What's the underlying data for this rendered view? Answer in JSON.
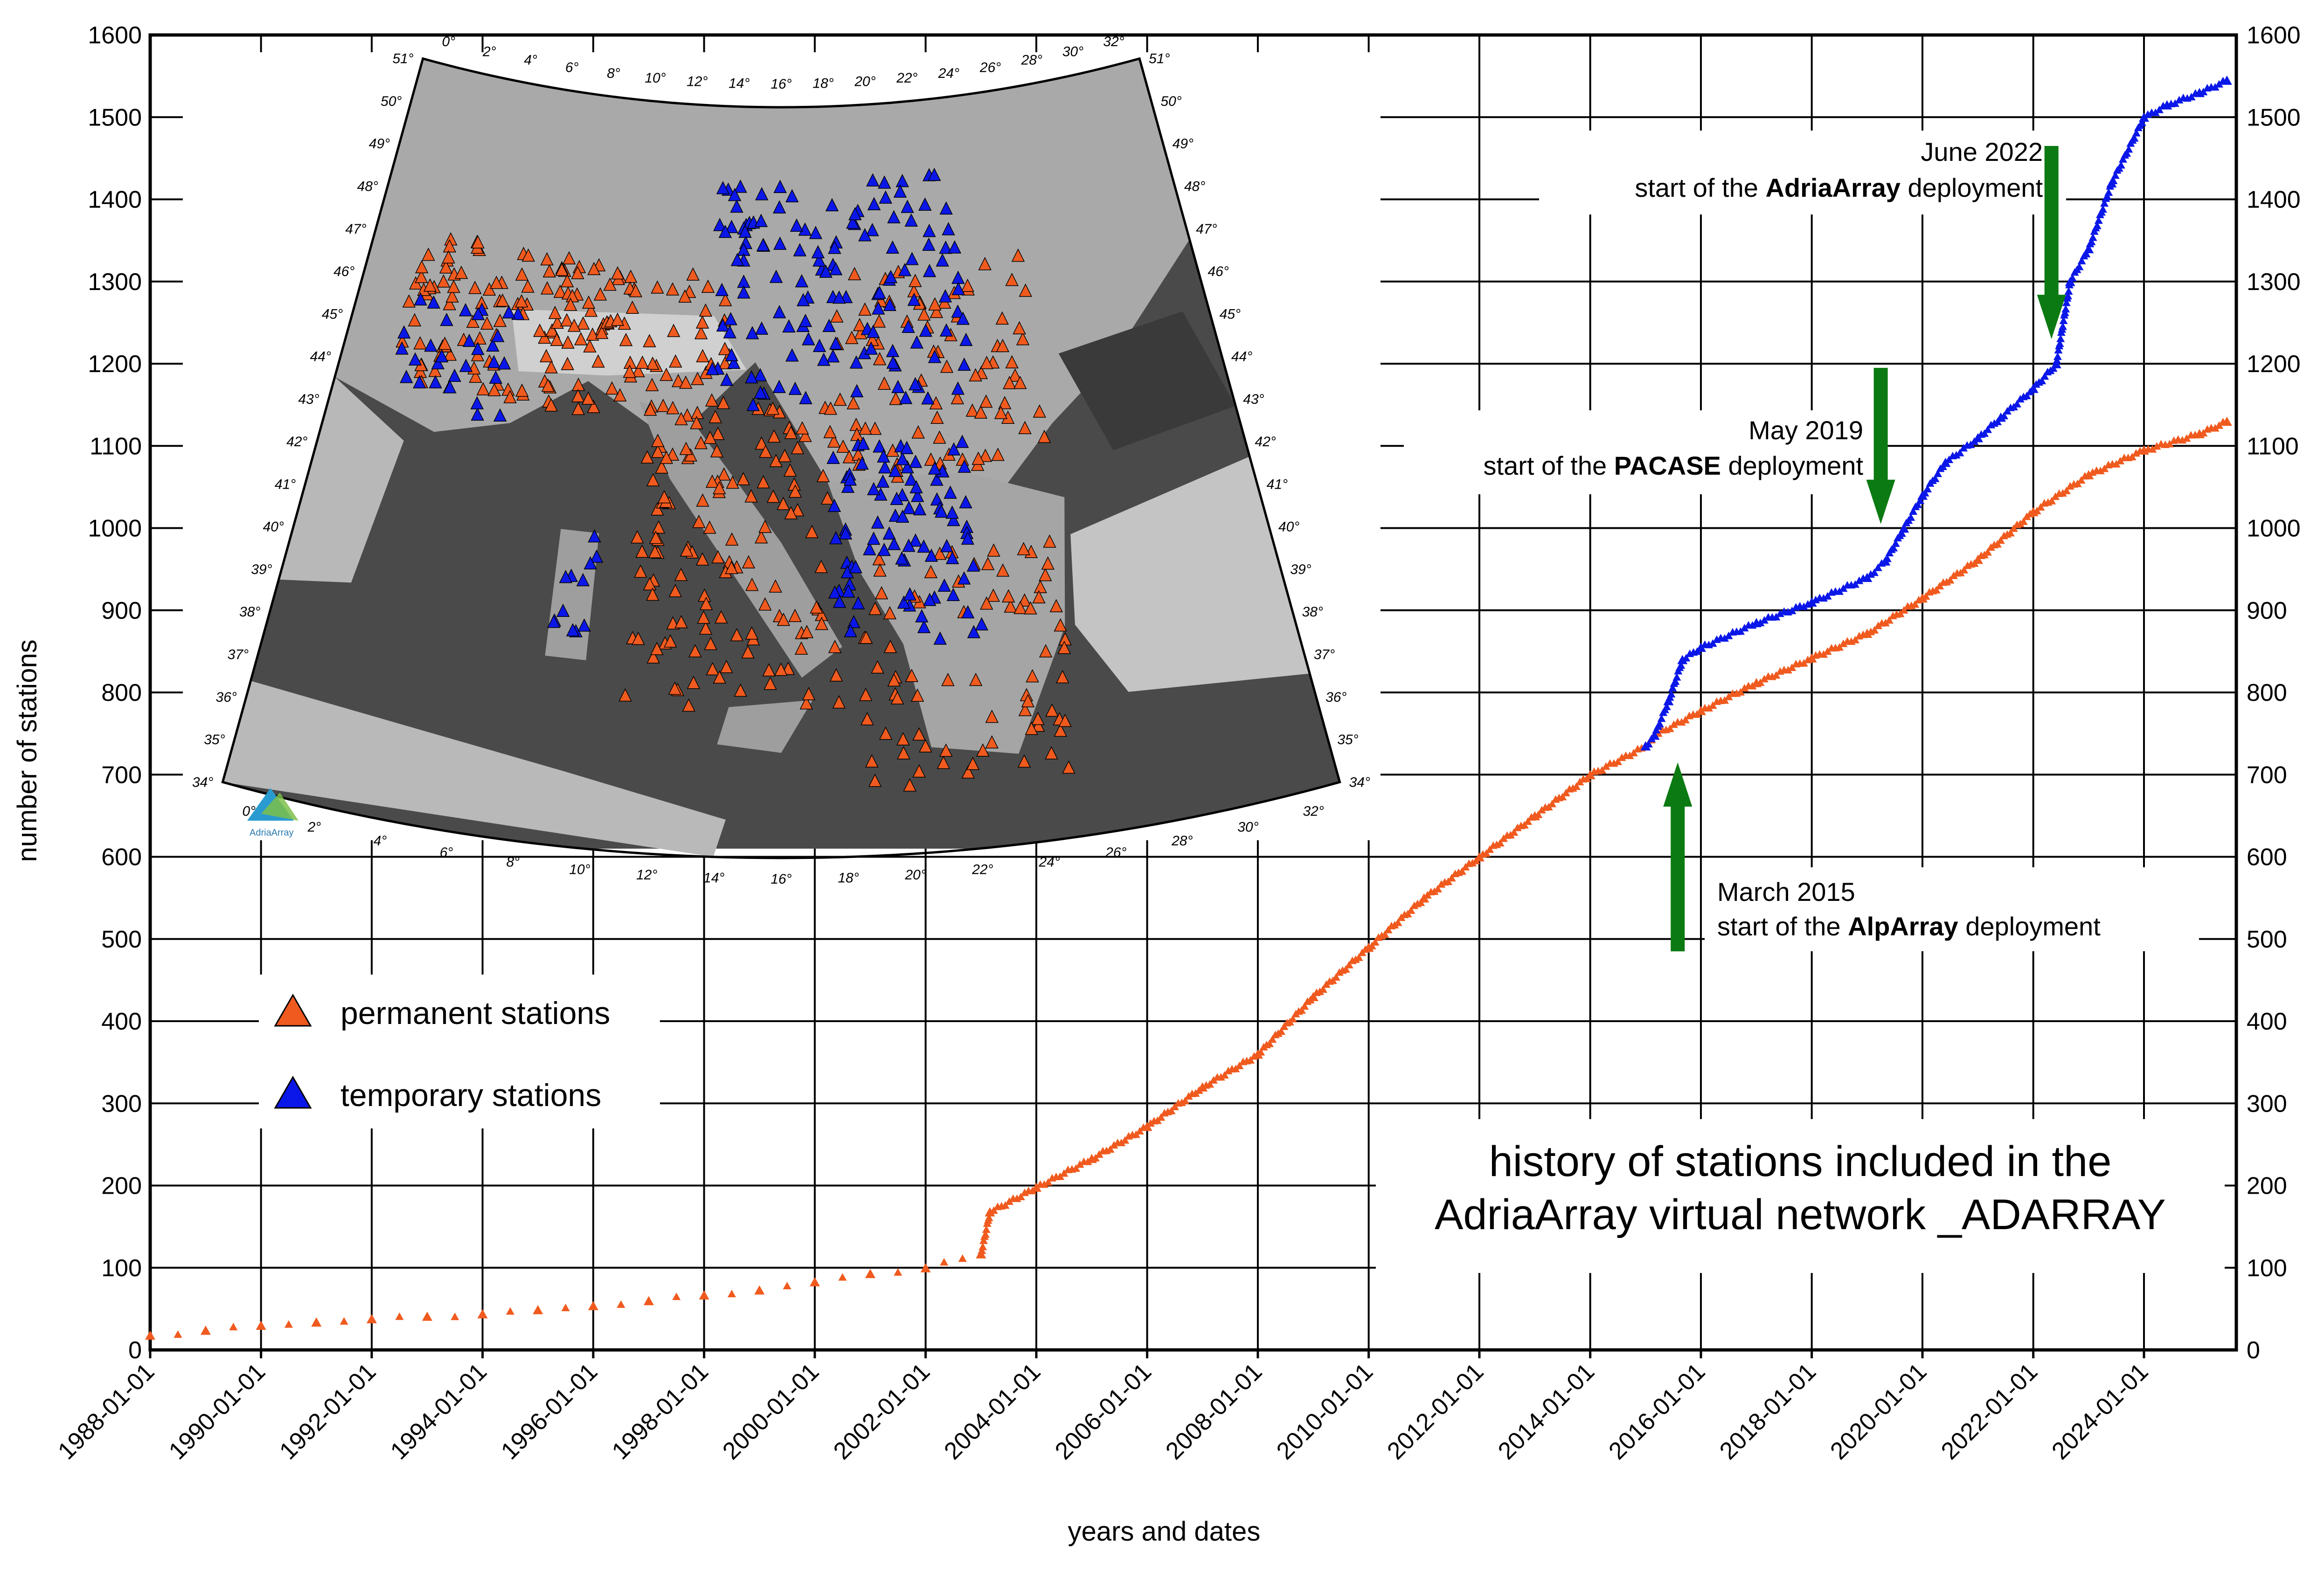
{
  "chart_data": {
    "type": "scatter",
    "title": "history of stations included in the AdriaArray virtual network _ADARRAY",
    "title_lines": [
      "history of stations included in the",
      "AdriaArray virtual network _ADARRAY"
    ],
    "xlabel": "years and dates",
    "ylabel": "number of stations",
    "xlim": [
      "1988-01-01",
      "2025-09-01"
    ],
    "ylim": [
      0,
      1600
    ],
    "grid": true,
    "x_ticks": [
      "1988-01-01",
      "1990-01-01",
      "1992-01-01",
      "1994-01-01",
      "1996-01-01",
      "1998-01-01",
      "2000-01-01",
      "2002-01-01",
      "2004-01-01",
      "2006-01-01",
      "2008-01-01",
      "2010-01-01",
      "2012-01-01",
      "2014-01-01",
      "2016-01-01",
      "2018-01-01",
      "2020-01-01",
      "2022-01-01",
      "2024-01-01"
    ],
    "y_ticks": [
      0,
      100,
      200,
      300,
      400,
      500,
      600,
      700,
      800,
      900,
      1000,
      1100,
      1200,
      1300,
      1400,
      1500,
      1600
    ],
    "legend_position": "middle-left",
    "series": [
      {
        "name": "permanent stations",
        "color": "#f05a1e",
        "marker": "triangle",
        "x": [
          "1988-01-01",
          "1989-01-01",
          "1990-01-01",
          "1991-01-01",
          "1992-01-01",
          "1993-01-01",
          "1994-01-01",
          "1995-01-01",
          "1996-01-01",
          "1997-01-01",
          "1998-01-01",
          "1999-01-01",
          "2000-01-01",
          "2001-01-01",
          "2002-01-01",
          "2003-01-01",
          "2003-03-01",
          "2004-01-01",
          "2005-01-01",
          "2006-01-01",
          "2007-01-01",
          "2008-01-01",
          "2009-01-01",
          "2010-01-01",
          "2011-01-01",
          "2012-01-01",
          "2013-01-01",
          "2014-01-01",
          "2015-01-01",
          "2015-03-01",
          "2016-01-01",
          "2017-01-01",
          "2018-01-01",
          "2019-01-01",
          "2020-01-01",
          "2021-01-01",
          "2022-01-01",
          "2023-01-01",
          "2024-01-01",
          "2025-01-01",
          "2025-07-01"
        ],
        "y": [
          18,
          24,
          30,
          34,
          38,
          41,
          44,
          49,
          54,
          60,
          67,
          73,
          83,
          93,
          100,
          117,
          168,
          198,
          233,
          272,
          320,
          360,
          430,
          490,
          550,
          600,
          650,
          700,
          735,
          748,
          778,
          812,
          842,
          872,
          915,
          962,
          1020,
          1065,
          1095,
          1115,
          1130
        ]
      },
      {
        "name": "temporary stations",
        "color": "#0b17e8",
        "marker": "triangle",
        "x": [
          "2015-01-01",
          "2015-03-01",
          "2015-06-01",
          "2015-09-01",
          "2016-01-01",
          "2017-01-01",
          "2018-01-01",
          "2019-01-01",
          "2019-05-01",
          "2019-09-01",
          "2020-01-01",
          "2020-06-01",
          "2021-01-01",
          "2021-06-01",
          "2022-01-01",
          "2022-06-01",
          "2022-09-01",
          "2023-01-01",
          "2023-06-01",
          "2024-01-01",
          "2024-06-01",
          "2025-01-01",
          "2025-07-01"
        ],
        "y": [
          735,
          748,
          790,
          840,
          855,
          885,
          910,
          940,
          960,
          1000,
          1040,
          1080,
          1110,
          1135,
          1170,
          1200,
          1300,
          1340,
          1420,
          1500,
          1515,
          1530,
          1545
        ]
      }
    ],
    "annotations": [
      {
        "date_line": "June 2022",
        "pre": "start of the ",
        "bold": "AdriaArray",
        "post": " deployment",
        "arrow": "down",
        "x": "2022-05-01",
        "arrow_from": 1465,
        "arrow_to": 1230
      },
      {
        "date_line": "May 2019",
        "pre": "start of the ",
        "bold": "PACASE",
        "post": " deployment",
        "arrow": "down",
        "x": "2019-04-01",
        "arrow_from": 1195,
        "arrow_to": 1005
      },
      {
        "date_line": "March 2015",
        "pre": "start of the ",
        "bold": "AlpArray",
        "post": " deployment",
        "arrow": "up",
        "x": "2015-08-01",
        "arrow_from": 485,
        "arrow_to": 715
      }
    ]
  },
  "map": {
    "lon_labels": [
      "0°",
      "2°",
      "4°",
      "6°",
      "8°",
      "10°",
      "12°",
      "14°",
      "16°",
      "18°",
      "20°",
      "22°",
      "24°",
      "26°",
      "28°",
      "30°",
      "32°"
    ],
    "lat_labels": [
      "34°",
      "35°",
      "36°",
      "37°",
      "38°",
      "39°",
      "40°",
      "41°",
      "42°",
      "43°",
      "44°",
      "45°",
      "46°",
      "47°",
      "48°",
      "49°",
      "50°",
      "51°"
    ],
    "logo_text": "AdriaArray"
  }
}
